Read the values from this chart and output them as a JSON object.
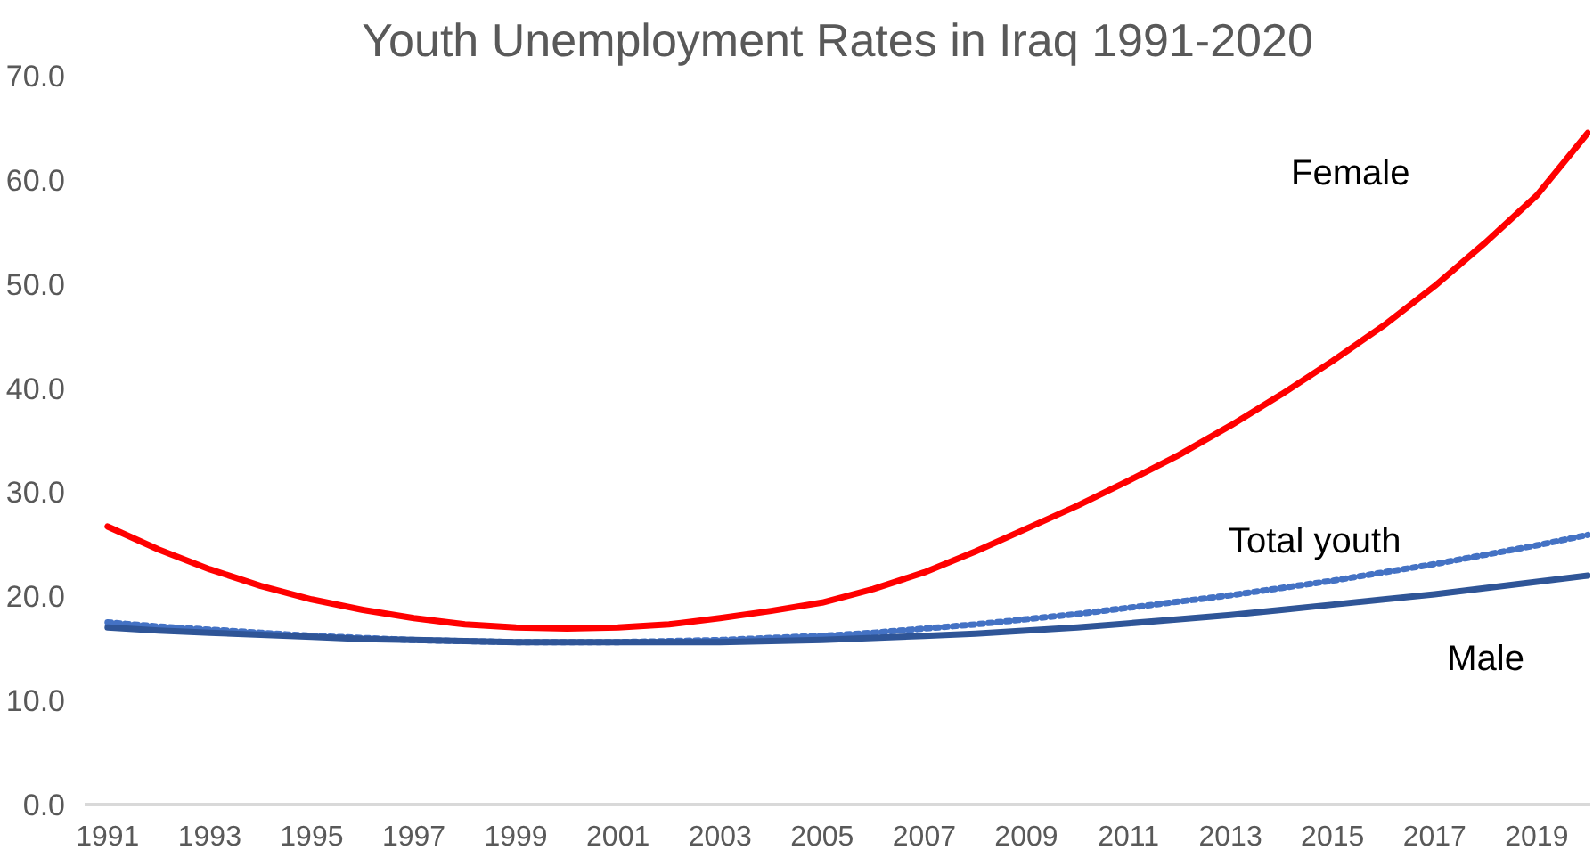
{
  "chart_data": {
    "type": "line",
    "title": "Youth Unemployment Rates in Iraq 1991-2020",
    "categories": [
      "1991",
      null,
      "1993",
      null,
      "1995",
      null,
      "1997",
      null,
      "1999",
      null,
      "2001",
      null,
      "2003",
      null,
      "2005",
      null,
      "2007",
      null,
      "2009",
      null,
      "2011",
      null,
      "2013",
      null,
      "2015",
      null,
      "2017",
      null,
      "2019",
      null
    ],
    "series": [
      {
        "name": "Female",
        "color": "#ff0000",
        "line_style": "solid",
        "values": [
          26.7,
          24.5,
          22.6,
          21.0,
          19.7,
          18.7,
          17.9,
          17.3,
          17.0,
          16.9,
          17.0,
          17.3,
          17.9,
          18.6,
          19.4,
          20.7,
          22.3,
          24.3,
          26.5,
          28.7,
          31.1,
          33.6,
          36.4,
          39.4,
          42.6,
          46.0,
          49.8,
          54.0,
          58.5,
          64.5
        ]
      },
      {
        "name": "Total youth",
        "color": "#4472c4",
        "line_style": "dotted",
        "values": [
          17.5,
          17.1,
          16.8,
          16.5,
          16.2,
          16.0,
          15.8,
          15.7,
          15.6,
          15.6,
          15.6,
          15.7,
          15.8,
          16.0,
          16.2,
          16.5,
          16.9,
          17.3,
          17.8,
          18.3,
          18.9,
          19.5,
          20.1,
          20.8,
          21.5,
          22.3,
          23.1,
          24.0,
          24.9,
          25.9
        ]
      },
      {
        "name": "Male",
        "color": "#2f5597",
        "line_style": "solid",
        "values": [
          17.0,
          16.7,
          16.5,
          16.3,
          16.1,
          15.9,
          15.8,
          15.7,
          15.6,
          15.6,
          15.6,
          15.6,
          15.6,
          15.7,
          15.8,
          16.0,
          16.2,
          16.4,
          16.7,
          17.0,
          17.4,
          17.8,
          18.2,
          18.7,
          19.2,
          19.7,
          20.2,
          20.8,
          21.4,
          22.0
        ]
      }
    ],
    "ylim": [
      0,
      70
    ],
    "yticks": [
      {
        "value": 0,
        "label": "0.0"
      },
      {
        "value": 10,
        "label": "10.0"
      },
      {
        "value": 20,
        "label": "20.0"
      },
      {
        "value": 30,
        "label": "30.0"
      },
      {
        "value": 40,
        "label": "40.0"
      },
      {
        "value": 50,
        "label": "50.0"
      },
      {
        "value": 60,
        "label": "60.0"
      },
      {
        "value": 70,
        "label": "70.0"
      }
    ],
    "grid": false,
    "marker": "none"
  }
}
